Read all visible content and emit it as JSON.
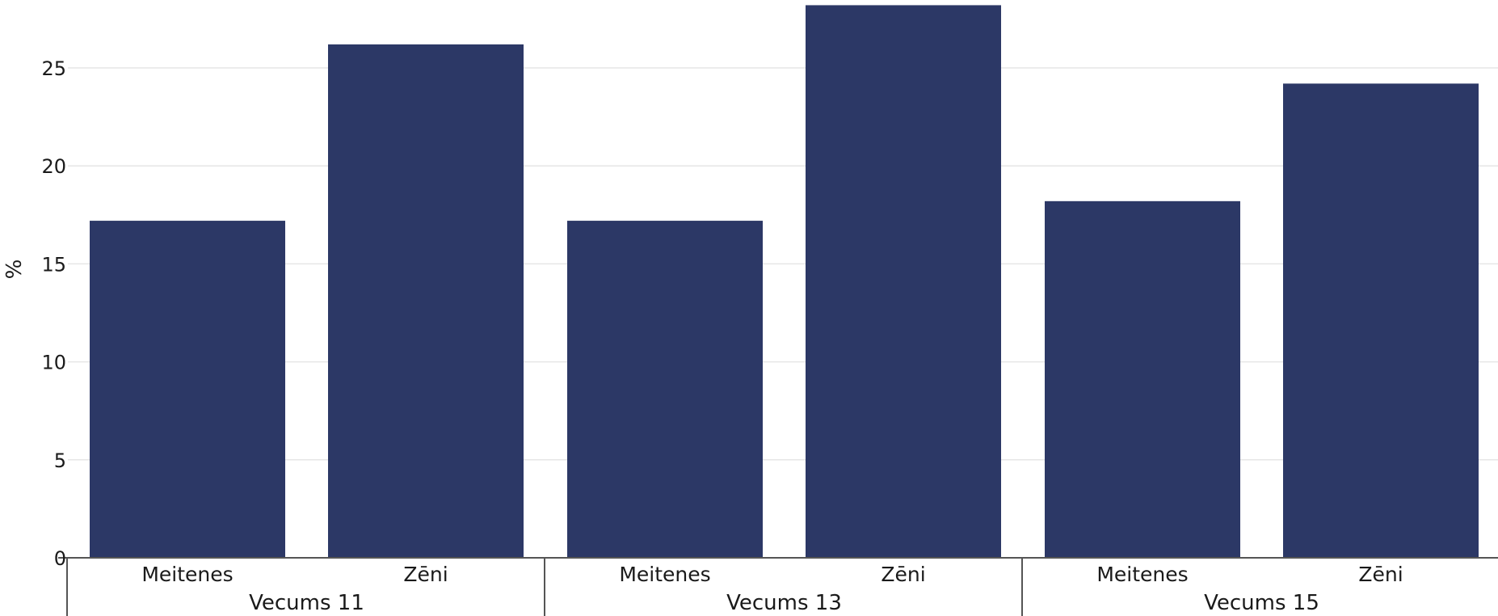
{
  "chart_data": {
    "type": "bar",
    "ylabel": "%",
    "ylim": [
      0,
      28
    ],
    "yticks": [
      0,
      5,
      10,
      15,
      20,
      25
    ],
    "grid": true,
    "bar_color": "#2c3866",
    "groups": [
      {
        "label": "Vecums 11",
        "categories": [
          "Meitenes",
          "Zēni"
        ],
        "values": [
          17.2,
          26.2
        ]
      },
      {
        "label": "Vecums 13",
        "categories": [
          "Meitenes",
          "Zēni"
        ],
        "values": [
          17.2,
          28.2
        ]
      },
      {
        "label": "Vecums 15",
        "categories": [
          "Meitenes",
          "Zēni"
        ],
        "values": [
          18.2,
          24.2
        ]
      }
    ]
  }
}
